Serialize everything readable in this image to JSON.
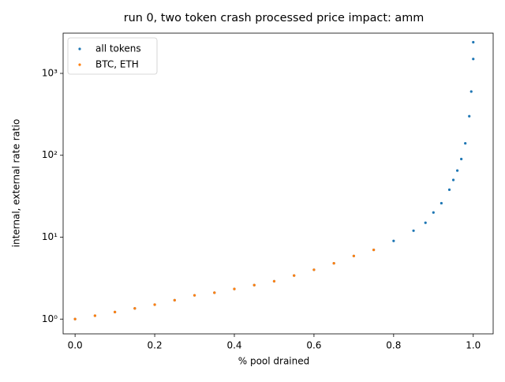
{
  "chart_data": {
    "type": "scatter",
    "title": "run 0, two token crash processed price impact: amm",
    "xlabel": "% pool drained",
    "ylabel": "internal, external rate ratio",
    "xlim": [
      -0.03,
      1.05
    ],
    "ylim": [
      0.66,
      3100
    ],
    "yscale": "log",
    "xticks": [
      {
        "value": 0,
        "label": "0.0"
      },
      0.2,
      0.4,
      0.6,
      0.8,
      {
        "value": 1,
        "label": "1.0"
      }
    ],
    "yticks": [
      {
        "value": 1,
        "label": "10⁰"
      },
      {
        "value": 10,
        "label": "10¹"
      },
      {
        "value": 100,
        "label": "10²"
      },
      {
        "value": 1000,
        "label": "10³"
      }
    ],
    "legend": "upper left",
    "series": [
      {
        "name": "all tokens",
        "color": "#1f77b4",
        "x": [
          0,
          0.05,
          0.1,
          0.15,
          0.2,
          0.25,
          0.3,
          0.35,
          0.4,
          0.45,
          0.5,
          0.55,
          0.6,
          0.65,
          0.7,
          0.75,
          0.8,
          0.85,
          0.88,
          0.9,
          0.92,
          0.94,
          0.95,
          0.96,
          0.97,
          0.98,
          0.99,
          0.995,
          1.0,
          1.0
        ],
        "values": [
          1.0,
          1.1,
          1.22,
          1.35,
          1.5,
          1.7,
          1.95,
          2.1,
          2.33,
          2.6,
          2.9,
          3.4,
          4.0,
          4.8,
          5.9,
          7.0,
          9.0,
          12,
          15,
          20,
          26,
          38,
          50,
          65,
          90,
          140,
          300,
          600,
          1500,
          2400
        ]
      },
      {
        "name": "BTC, ETH",
        "color": "#ff7f0e",
        "x": [
          0,
          0.05,
          0.1,
          0.15,
          0.2,
          0.25,
          0.3,
          0.35,
          0.4,
          0.45,
          0.5,
          0.55,
          0.6,
          0.65,
          0.7,
          0.75
        ],
        "values": [
          1.0,
          1.1,
          1.22,
          1.35,
          1.5,
          1.7,
          1.95,
          2.1,
          2.33,
          2.6,
          2.9,
          3.4,
          4.0,
          4.8,
          5.9,
          7.0
        ]
      }
    ]
  }
}
